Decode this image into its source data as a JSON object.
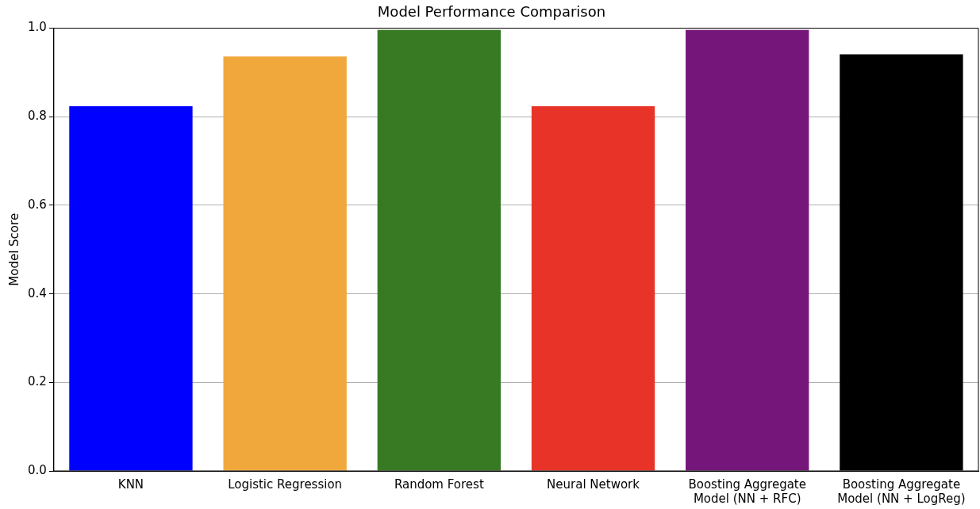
{
  "chart_data": {
    "type": "bar",
    "title": "Model Performance Comparison",
    "ylabel": "Model Score",
    "categories": [
      "KNN",
      "Logistic Regression",
      "Random Forest",
      "Neural Network",
      "Boosting Aggregate Model (NN + RFC)",
      "Boosting Aggregate Model (NN + LogReg)"
    ],
    "values": [
      0.824,
      0.936,
      0.996,
      0.824,
      0.996,
      0.941
    ],
    "colors": [
      "#0000ff",
      "#f0a83c",
      "#377a23",
      "#e83428",
      "#75167a",
      "#000000"
    ],
    "ylim": [
      0,
      1
    ],
    "yticks": [
      {
        "value": 0,
        "label": "0.0"
      },
      {
        "value": 0.2,
        "label": "0.2"
      },
      {
        "value": 0.4,
        "label": "0.4"
      },
      {
        "value": 0.6,
        "label": "0.6"
      },
      {
        "value": 0.8,
        "label": "0.8"
      },
      {
        "value": 1,
        "label": "1.0"
      }
    ],
    "grid": "y",
    "legend": false
  }
}
